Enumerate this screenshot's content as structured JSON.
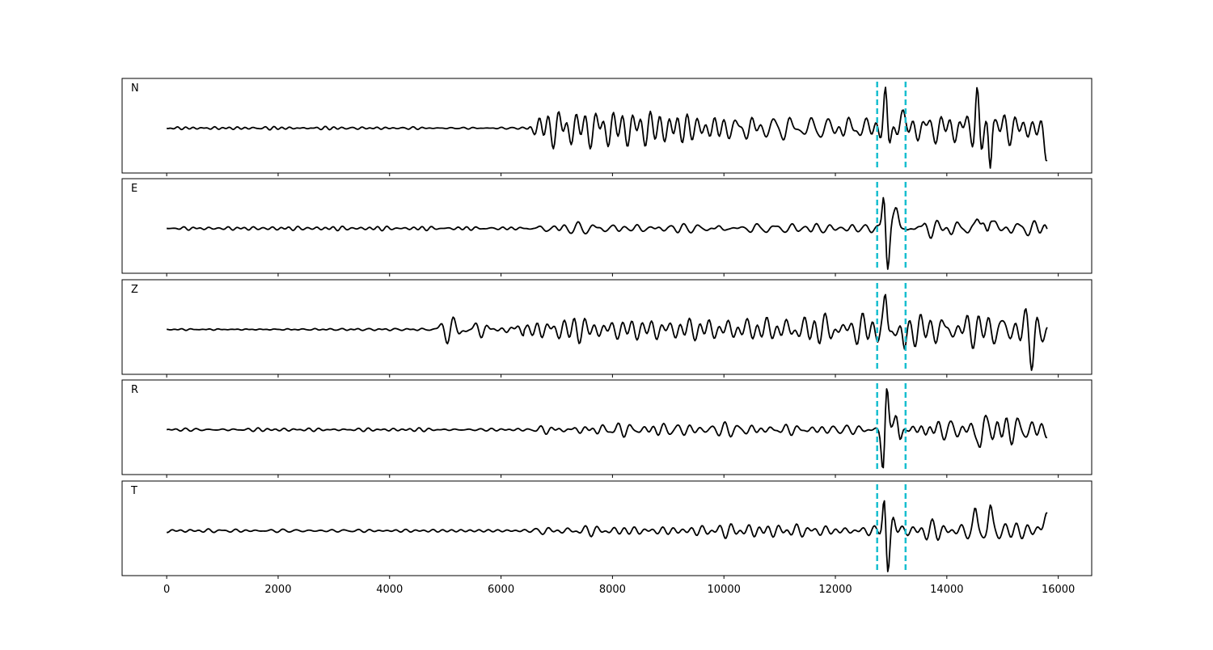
{
  "chart_data": {
    "type": "line",
    "title": "",
    "xlabel": "",
    "ylabel": "",
    "xlim": [
      -800,
      16600
    ],
    "x_ticks": [
      0,
      2000,
      4000,
      6000,
      8000,
      10000,
      12000,
      14000,
      16000
    ],
    "tick_labels": [
      "0",
      "2000",
      "4000",
      "6000",
      "8000",
      "10000",
      "12000",
      "14000",
      "16000"
    ],
    "grid": false,
    "legend": "none",
    "line_color": "#000000",
    "marker_color": "#17becf",
    "vertical_markers": [
      12750,
      13260
    ],
    "samples": {
      "start": 0,
      "end": 15800,
      "step": 20
    },
    "panels": [
      {
        "label": "N",
        "seed": 11,
        "bursts": [
          {
            "x0": 6450,
            "x1": 15800,
            "amp": 0.25,
            "wl": 260
          }
        ],
        "peaks": [
          {
            "x": 12900,
            "amp": 1.0,
            "w": 45
          },
          {
            "x": 12960,
            "amp": -0.55,
            "w": 50
          },
          {
            "x": 13180,
            "amp": 0.35,
            "w": 60
          },
          {
            "x": 14540,
            "amp": 0.85,
            "w": 40
          },
          {
            "x": 14620,
            "amp": -0.55,
            "w": 40
          },
          {
            "x": 14780,
            "amp": -0.95,
            "w": 40
          },
          {
            "x": 14820,
            "amp": 0.45,
            "w": 40
          },
          {
            "x": 15790,
            "amp": -0.6,
            "w": 70
          }
        ]
      },
      {
        "label": "E",
        "seed": 23,
        "bursts": [
          {
            "x0": 6500,
            "x1": 15800,
            "amp": 0.07,
            "wl": 260
          },
          {
            "x0": 13300,
            "x1": 15800,
            "amp": 0.12,
            "wl": 240
          }
        ],
        "peaks": [
          {
            "x": 12870,
            "amp": 0.85,
            "w": 40
          },
          {
            "x": 12940,
            "amp": -1.0,
            "w": 45
          },
          {
            "x": 13040,
            "amp": 0.25,
            "w": 60
          },
          {
            "x": 13100,
            "amp": 0.35,
            "w": 50
          },
          {
            "x": 14550,
            "amp": 0.25,
            "w": 50
          },
          {
            "x": 14780,
            "amp": 0.3,
            "w": 45
          }
        ]
      },
      {
        "label": "Z",
        "seed": 37,
        "bursts": [
          {
            "x0": 4700,
            "x1": 6400,
            "amp": 0.28,
            "wl": 220
          },
          {
            "x0": 6400,
            "x1": 15800,
            "amp": 0.48,
            "wl": 240
          }
        ],
        "peaks": [
          {
            "x": 12900,
            "amp": 1.0,
            "w": 40
          },
          {
            "x": 13240,
            "amp": -0.65,
            "w": 45
          },
          {
            "x": 15530,
            "amp": -0.7,
            "w": 50
          },
          {
            "x": 15760,
            "amp": -0.4,
            "w": 60
          }
        ]
      },
      {
        "label": "R",
        "seed": 53,
        "bursts": [
          {
            "x0": 6500,
            "x1": 15800,
            "amp": 0.07,
            "wl": 260
          },
          {
            "x0": 13300,
            "x1": 15800,
            "amp": 0.16,
            "wl": 240
          }
        ],
        "peaks": [
          {
            "x": 12920,
            "amp": 1.0,
            "w": 45
          },
          {
            "x": 12860,
            "amp": -0.95,
            "w": 45
          },
          {
            "x": 13100,
            "amp": 0.35,
            "w": 50
          },
          {
            "x": 13160,
            "amp": -0.25,
            "w": 50
          },
          {
            "x": 14600,
            "amp": -0.4,
            "w": 50
          },
          {
            "x": 14680,
            "amp": 0.25,
            "w": 50
          }
        ]
      },
      {
        "label": "T",
        "seed": 71,
        "bursts": [
          {
            "x0": 6500,
            "x1": 15800,
            "amp": 0.07,
            "wl": 260
          },
          {
            "x0": 13300,
            "x1": 15800,
            "amp": 0.14,
            "wl": 240
          }
        ],
        "peaks": [
          {
            "x": 12880,
            "amp": 0.8,
            "w": 40
          },
          {
            "x": 12940,
            "amp": -1.0,
            "w": 45
          },
          {
            "x": 13040,
            "amp": 0.3,
            "w": 50
          },
          {
            "x": 14510,
            "amp": 0.35,
            "w": 45
          },
          {
            "x": 14780,
            "amp": 0.42,
            "w": 45
          },
          {
            "x": 15790,
            "amp": 0.4,
            "w": 70
          }
        ]
      }
    ]
  }
}
